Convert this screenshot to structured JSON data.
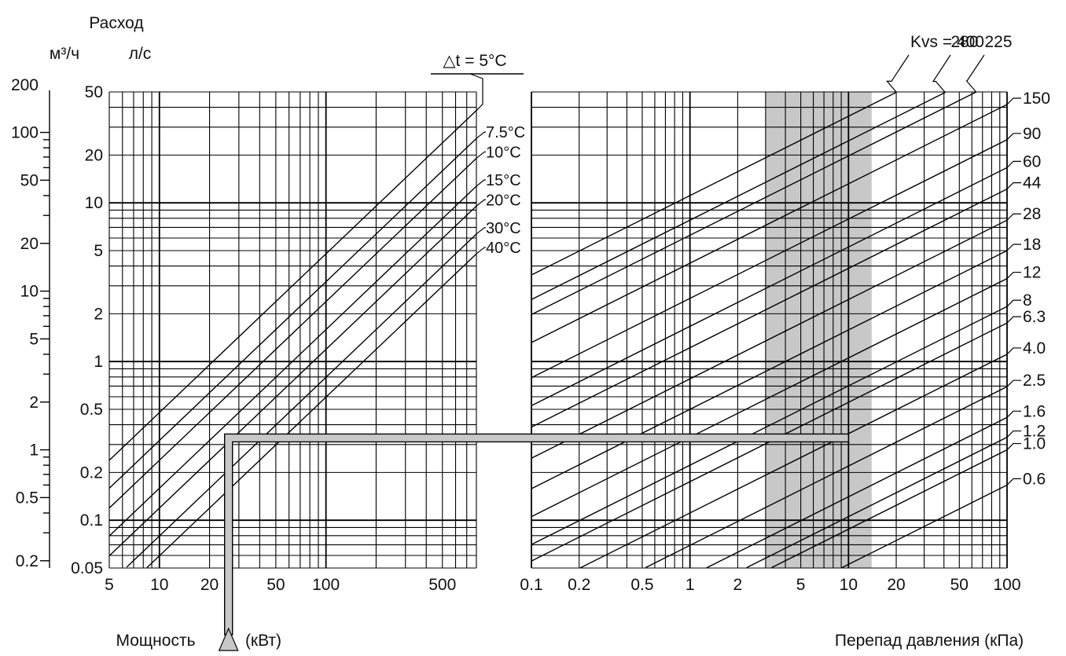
{
  "chart_data": {
    "type": "line",
    "left_axis": {
      "title": "Расход",
      "unit_m3h": "м³/ч",
      "unit_ls": "л/с",
      "ticks_m3h": [
        {
          "v": 200,
          "label": "200"
        },
        {
          "v": 100,
          "label": "100"
        },
        {
          "v": 50,
          "label": "50"
        },
        {
          "v": 20,
          "label": "20"
        },
        {
          "v": 10,
          "label": "10"
        },
        {
          "v": 5,
          "label": "5"
        },
        {
          "v": 2,
          "label": "2"
        },
        {
          "v": 1,
          "label": "1"
        },
        {
          "v": 0.5,
          "label": "0.5"
        },
        {
          "v": 0.2,
          "label": "0.2"
        }
      ],
      "ticks_ls": [
        {
          "v": 50,
          "label": "50"
        },
        {
          "v": 20,
          "label": "20"
        },
        {
          "v": 10,
          "label": "10"
        },
        {
          "v": 5,
          "label": "5"
        },
        {
          "v": 2,
          "label": "2"
        },
        {
          "v": 1,
          "label": "1"
        },
        {
          "v": 0.5,
          "label": "0.5"
        },
        {
          "v": 0.2,
          "label": "0.2"
        },
        {
          "v": 0.1,
          "label": "0.1"
        },
        {
          "v": 0.05,
          "label": "0.05"
        }
      ],
      "ylim_ls": [
        0.05,
        50
      ],
      "scale": "log"
    },
    "power_axis": {
      "label": "Мощность",
      "unit": "(кВт)",
      "ticks": [
        {
          "v": 5,
          "label": "5"
        },
        {
          "v": 10,
          "label": "10"
        },
        {
          "v": 20,
          "label": "20"
        },
        {
          "v": 50,
          "label": "50"
        },
        {
          "v": 100,
          "label": "100"
        },
        {
          "v": 500,
          "label": "500"
        }
      ],
      "xlim": [
        5,
        800
      ],
      "scale": "log"
    },
    "pressure_axis": {
      "label": "Перепад давления (кПа)",
      "ticks": [
        {
          "v": 0.1,
          "label": "0.1"
        },
        {
          "v": 0.2,
          "label": "0.2"
        },
        {
          "v": 0.5,
          "label": "0.5"
        },
        {
          "v": 1,
          "label": "1"
        },
        {
          "v": 2,
          "label": "2"
        },
        {
          "v": 5,
          "label": "5"
        },
        {
          "v": 10,
          "label": "10"
        },
        {
          "v": 20,
          "label": "20"
        },
        {
          "v": 50,
          "label": "50"
        },
        {
          "v": 100,
          "label": "100"
        }
      ],
      "xlim": [
        0.1,
        100
      ],
      "scale": "log",
      "shaded_band_kpa": [
        3,
        14
      ]
    },
    "delta_t_header": "△t = 5°C",
    "delta_t_series": [
      {
        "name": "5°C",
        "dt": 5
      },
      {
        "name": "7.5°C",
        "dt": 7.5
      },
      {
        "name": "10°C",
        "dt": 10
      },
      {
        "name": "15°C",
        "dt": 15
      },
      {
        "name": "20°C",
        "dt": 20
      },
      {
        "name": "30°C",
        "dt": 30
      },
      {
        "name": "40°C",
        "dt": 40
      }
    ],
    "kvs_header": "Kvs = 400",
    "kvs_series": [
      {
        "name": "400",
        "kvs": 400
      },
      {
        "name": "280",
        "kvs": 280
      },
      {
        "name": "225",
        "kvs": 225
      },
      {
        "name": "150",
        "kvs": 150
      },
      {
        "name": "90",
        "kvs": 90
      },
      {
        "name": "60",
        "kvs": 60
      },
      {
        "name": "44",
        "kvs": 44
      },
      {
        "name": "28",
        "kvs": 28
      },
      {
        "name": "18",
        "kvs": 18
      },
      {
        "name": "12",
        "kvs": 12
      },
      {
        "name": "8",
        "kvs": 8
      },
      {
        "name": "6.3",
        "kvs": 6.3
      },
      {
        "name": "4.0",
        "kvs": 4.0
      },
      {
        "name": "2.5",
        "kvs": 2.5
      },
      {
        "name": "1.6",
        "kvs": 1.6
      },
      {
        "name": "1.2",
        "kvs": 1.2
      },
      {
        "name": "1.0",
        "kvs": 1.0
      },
      {
        "name": "0.6",
        "kvs": 0.6
      }
    ],
    "example_path": {
      "power_kw": 26,
      "flow_ls": 0.33,
      "pressure_kpa": 10
    },
    "grid": true,
    "colors": {
      "line": "#000000",
      "band": "#c8c8c8",
      "path_fill": "#c8c8c8"
    }
  }
}
